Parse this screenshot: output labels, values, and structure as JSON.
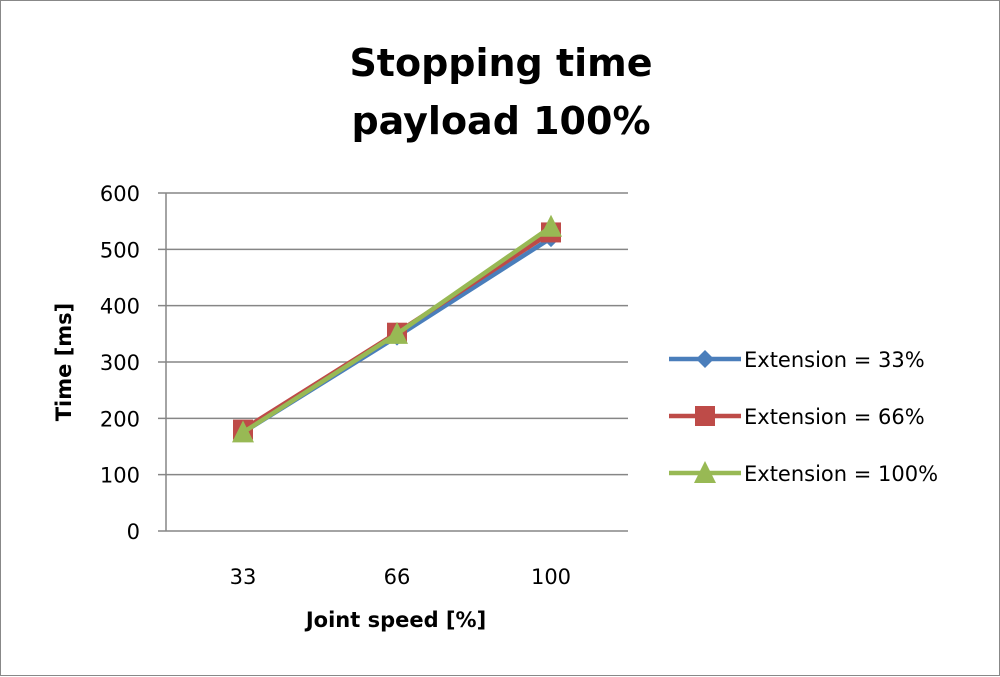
{
  "chart_data": {
    "type": "line",
    "title": [
      "Stopping time",
      "payload 100%"
    ],
    "xlabel": "Joint speed [%]",
    "ylabel": "Time [ms]",
    "categories": [
      "33",
      "66",
      "100"
    ],
    "ylim": [
      0,
      600
    ],
    "yticks": [
      0,
      100,
      200,
      300,
      400,
      500,
      600
    ],
    "grid": true,
    "legend_position": "right",
    "series": [
      {
        "name": "Extension = 33%",
        "values": [
          175,
          345,
          520
        ],
        "color": "#4a7ebb",
        "marker": "diamond"
      },
      {
        "name": "Extension = 66%",
        "values": [
          180,
          352,
          530
        ],
        "color": "#be4b48",
        "marker": "square"
      },
      {
        "name": "Extension = 100%",
        "values": [
          175,
          350,
          540
        ],
        "color": "#98b954",
        "marker": "triangle"
      }
    ]
  }
}
